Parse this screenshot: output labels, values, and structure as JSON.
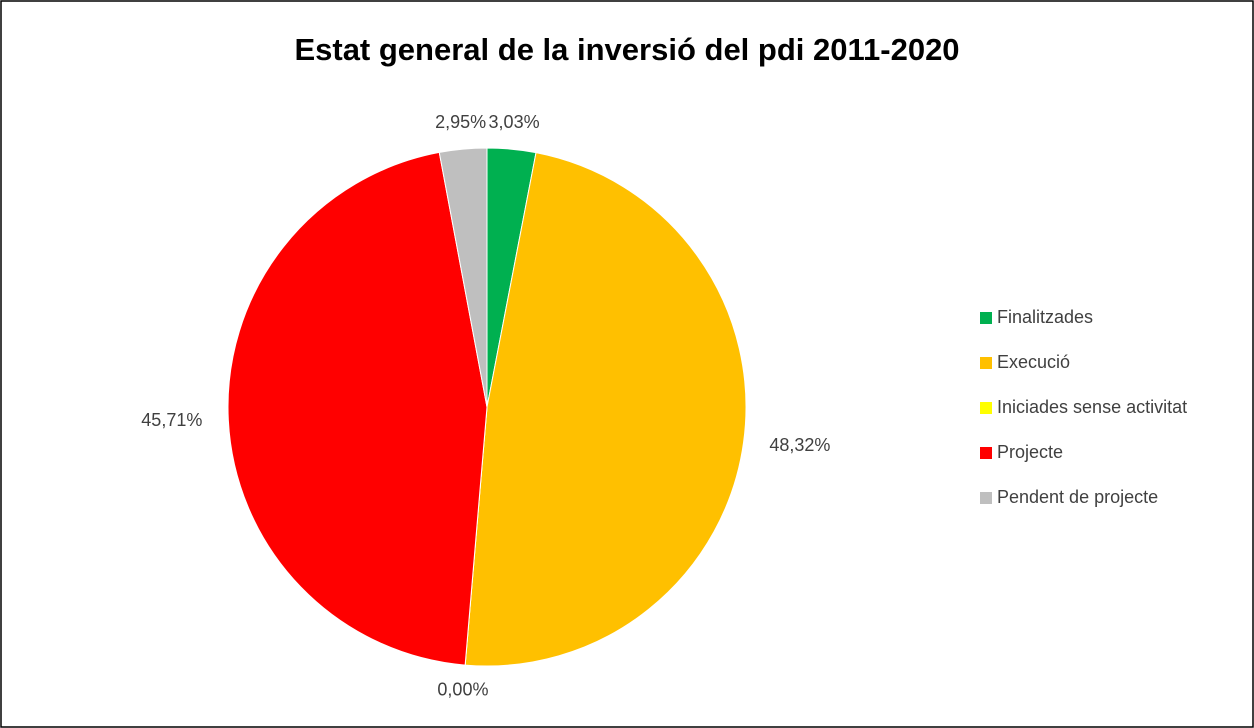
{
  "chart_data": {
    "type": "pie",
    "title": "Estat general de la inversió del pdi 2011-2020",
    "categories": [
      "Finalitzades",
      "Execució",
      "Iniciades sense activitat",
      "Projecte",
      "Pendent de projecte"
    ],
    "values": [
      3.03,
      48.32,
      0.0,
      45.71,
      2.95
    ],
    "value_labels": [
      "3,03%",
      "48,32%",
      "0,00%",
      "45,71%",
      "2,95%"
    ],
    "colors": [
      "#00b050",
      "#ffc000",
      "#ffff00",
      "#ff0000",
      "#bfbfbf"
    ],
    "legend": "right"
  }
}
